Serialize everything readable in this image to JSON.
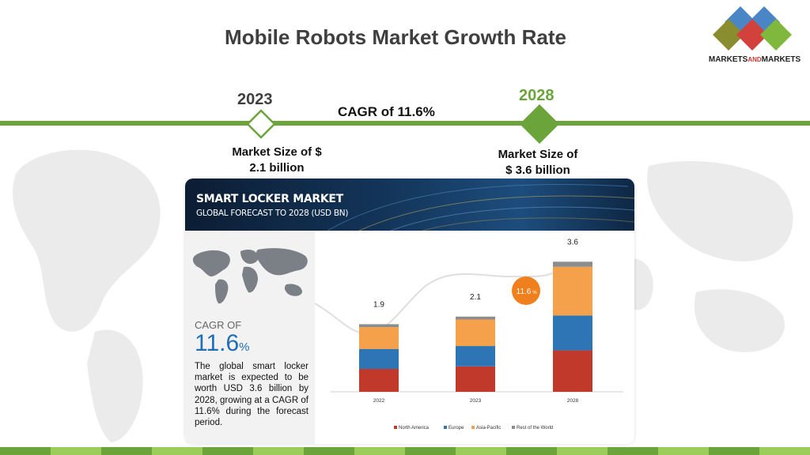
{
  "slide": {
    "title": "Mobile Robots Market Growth Rate",
    "year_start": "2023",
    "year_end": "2028",
    "cagr_label": "CAGR of 11.6%",
    "market_size_start_line1": "Market Size of $",
    "market_size_start_line2": "2.1 billion",
    "market_size_end_line1": "Market Size of",
    "market_size_end_line2": "$ 3.6 billion"
  },
  "logo": {
    "text_part1": "MARKETS",
    "text_part2": "AND",
    "text_part3": "MARKETS"
  },
  "panel": {
    "title": "SMART LOCKER MARKET",
    "subtitle": "GLOBAL FORECAST TO 2028 (USD BN)",
    "cagr_of": "CAGR OF",
    "cagr_value": "11.6",
    "cagr_unit": "%",
    "description": "The global smart locker market is expected to be worth USD 3.6 billion by 2028, growing at a CAGR of 11.6% during the forecast period."
  },
  "colors": {
    "green": "#6aa43a",
    "north_america": "#c0392b",
    "europe": "#2e75b6",
    "asia_pacific": "#f5a04a",
    "rest_of_world": "#8c8c8c"
  },
  "chart_data": {
    "type": "bar",
    "stacked": true,
    "categories": [
      "2022",
      "2023",
      "2028"
    ],
    "totals": [
      1.9,
      2.1,
      3.6
    ],
    "total_labels": [
      "1.9",
      "2.1",
      "3.6"
    ],
    "series": [
      {
        "name": "North America",
        "values": [
          0.63,
          0.7,
          1.14
        ]
      },
      {
        "name": "Europe",
        "values": [
          0.55,
          0.56,
          0.96
        ]
      },
      {
        "name": "Asia-Pacific",
        "values": [
          0.6,
          0.73,
          1.34
        ]
      },
      {
        "name": "Rest of the World",
        "values": [
          0.08,
          0.08,
          0.14
        ]
      }
    ],
    "series_colors": [
      "#c0392b",
      "#2e75b6",
      "#f5a04a",
      "#8c8c8c"
    ],
    "cagr_badge": "11.6",
    "cagr_badge_unit": "%",
    "ylim": [
      0,
      4.0
    ],
    "legend_position": "bottom",
    "grid": false
  }
}
